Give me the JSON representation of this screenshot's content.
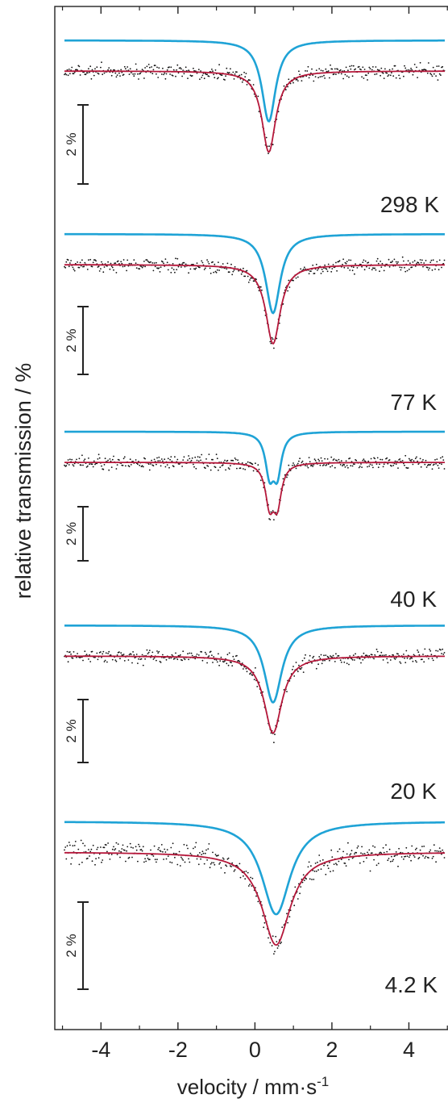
{
  "chart_data": {
    "type": "line",
    "ylabel": "relative transmission / %",
    "xlabel_parts": {
      "main": "velocity / mm·s",
      "superscript": "-1"
    },
    "xlim": [
      -5.2,
      5.1
    ],
    "x_ticks": [
      -4,
      -2,
      0,
      2,
      4
    ],
    "x_tick_labels": [
      "-4",
      "-2",
      "0",
      "2",
      "4"
    ],
    "grid": false,
    "colors": {
      "data_points": "#111111",
      "total_fit": "#b5173a",
      "subspectrum": "#1fa3d6",
      "axes": "#222222"
    },
    "scale_bar_label": "2 %",
    "panels": [
      {
        "temperature": "298 K",
        "baseline_total": 100.0,
        "baseline_sub": 100.0,
        "components": [
          {
            "center": 0.36,
            "depth": 2.05,
            "hwhm": 0.22,
            "sub_offset": 0
          }
        ]
      },
      {
        "temperature": "77 K",
        "baseline_total": 100.0,
        "baseline_sub": 100.0,
        "components": [
          {
            "center": 0.47,
            "depth": 2.0,
            "hwhm": 0.23,
            "sub_offset": 0
          }
        ]
      },
      {
        "temperature": "40 K",
        "baseline_total": 100.0,
        "baseline_sub": 100.0,
        "components": [
          {
            "center": 0.38,
            "depth": 1.0,
            "hwhm": 0.13
          },
          {
            "center": 0.58,
            "depth": 1.0,
            "hwhm": 0.13
          }
        ]
      },
      {
        "temperature": "20 K",
        "baseline_total": 100.0,
        "baseline_sub": 100.0,
        "components": [
          {
            "center": 0.47,
            "depth": 1.95,
            "hwhm": 0.28
          }
        ]
      },
      {
        "temperature": "4.2 K",
        "baseline_total": 100.0,
        "baseline_sub": 100.0,
        "components": [
          {
            "center": 0.55,
            "depth": 2.35,
            "hwhm": 0.45
          }
        ]
      }
    ]
  }
}
